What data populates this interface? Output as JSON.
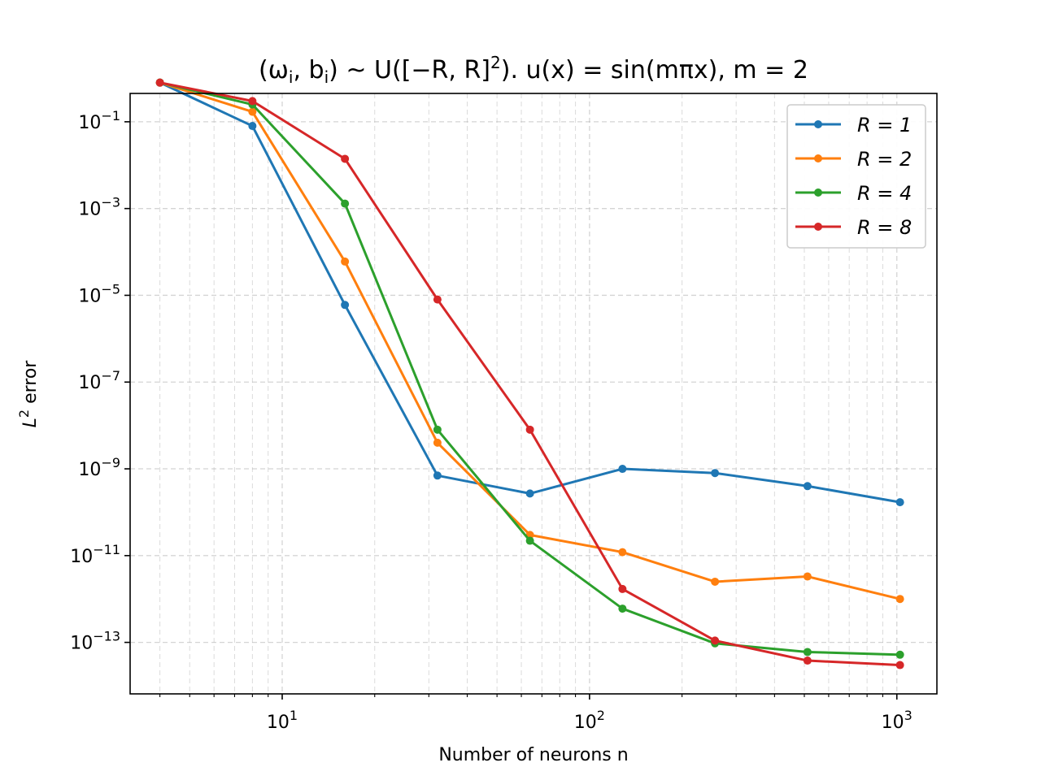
{
  "chart_data": {
    "type": "line",
    "title": "(ω_i, b_i) ~ U([−R, R]^2). u(x) = sin(mπx), m = 2",
    "title_parts": {
      "p1": "(ω",
      "s1": "i",
      "p2": ", b",
      "s2": "i",
      "p3": ") ~ U([−R, R]",
      "sup": "2",
      "p4": "). u(x) = sin(mπx), m = 2"
    },
    "xlabel": "Number of neurons n",
    "ylabel": "error",
    "ylabel_prefix": "L",
    "ylabel_sup": "2",
    "xscale": "log",
    "yscale": "log",
    "xlim": [
      3.2,
      1350
    ],
    "ylim": [
      6.5e-15,
      0.45
    ],
    "grid": true,
    "legend_position": "top-right",
    "x_ticks": [
      {
        "base": "10",
        "exp": "1",
        "value": 10
      },
      {
        "base": "10",
        "exp": "2",
        "value": 100
      },
      {
        "base": "10",
        "exp": "3",
        "value": 1000
      }
    ],
    "y_ticks": [
      {
        "base": "10",
        "exp": "−1",
        "value": 0.1
      },
      {
        "base": "10",
        "exp": "−3",
        "value": 0.001
      },
      {
        "base": "10",
        "exp": "−5",
        "value": 1e-05
      },
      {
        "base": "10",
        "exp": "−7",
        "value": 1e-07
      },
      {
        "base": "10",
        "exp": "−9",
        "value": 1e-09
      },
      {
        "base": "10",
        "exp": "−11",
        "value": 1e-11
      },
      {
        "base": "10",
        "exp": "−13",
        "value": 1e-13
      }
    ],
    "x": [
      4,
      8,
      16,
      32,
      64,
      128,
      256,
      512,
      1024
    ],
    "series": [
      {
        "name": "R = 1",
        "color": "#1f77b4",
        "values": [
          0.8,
          0.08,
          6e-06,
          7e-10,
          2.7e-10,
          1e-09,
          8e-10,
          4e-10,
          1.7e-10
        ]
      },
      {
        "name": "R = 2",
        "color": "#ff7f0e",
        "values": [
          0.8,
          0.17,
          6e-05,
          4e-09,
          3e-11,
          1.2e-11,
          2.5e-12,
          3.3e-12,
          1e-12
        ]
      },
      {
        "name": "R = 4",
        "color": "#2ca02c",
        "values": [
          0.8,
          0.25,
          0.0013,
          8e-09,
          2.2e-11,
          6e-13,
          9.5e-14,
          6e-14,
          5.2e-14
        ]
      },
      {
        "name": "R = 8",
        "color": "#d62728",
        "values": [
          0.8,
          0.3,
          0.014,
          8e-06,
          8e-09,
          1.7e-12,
          1.1e-13,
          3.8e-14,
          3e-14
        ]
      }
    ]
  }
}
